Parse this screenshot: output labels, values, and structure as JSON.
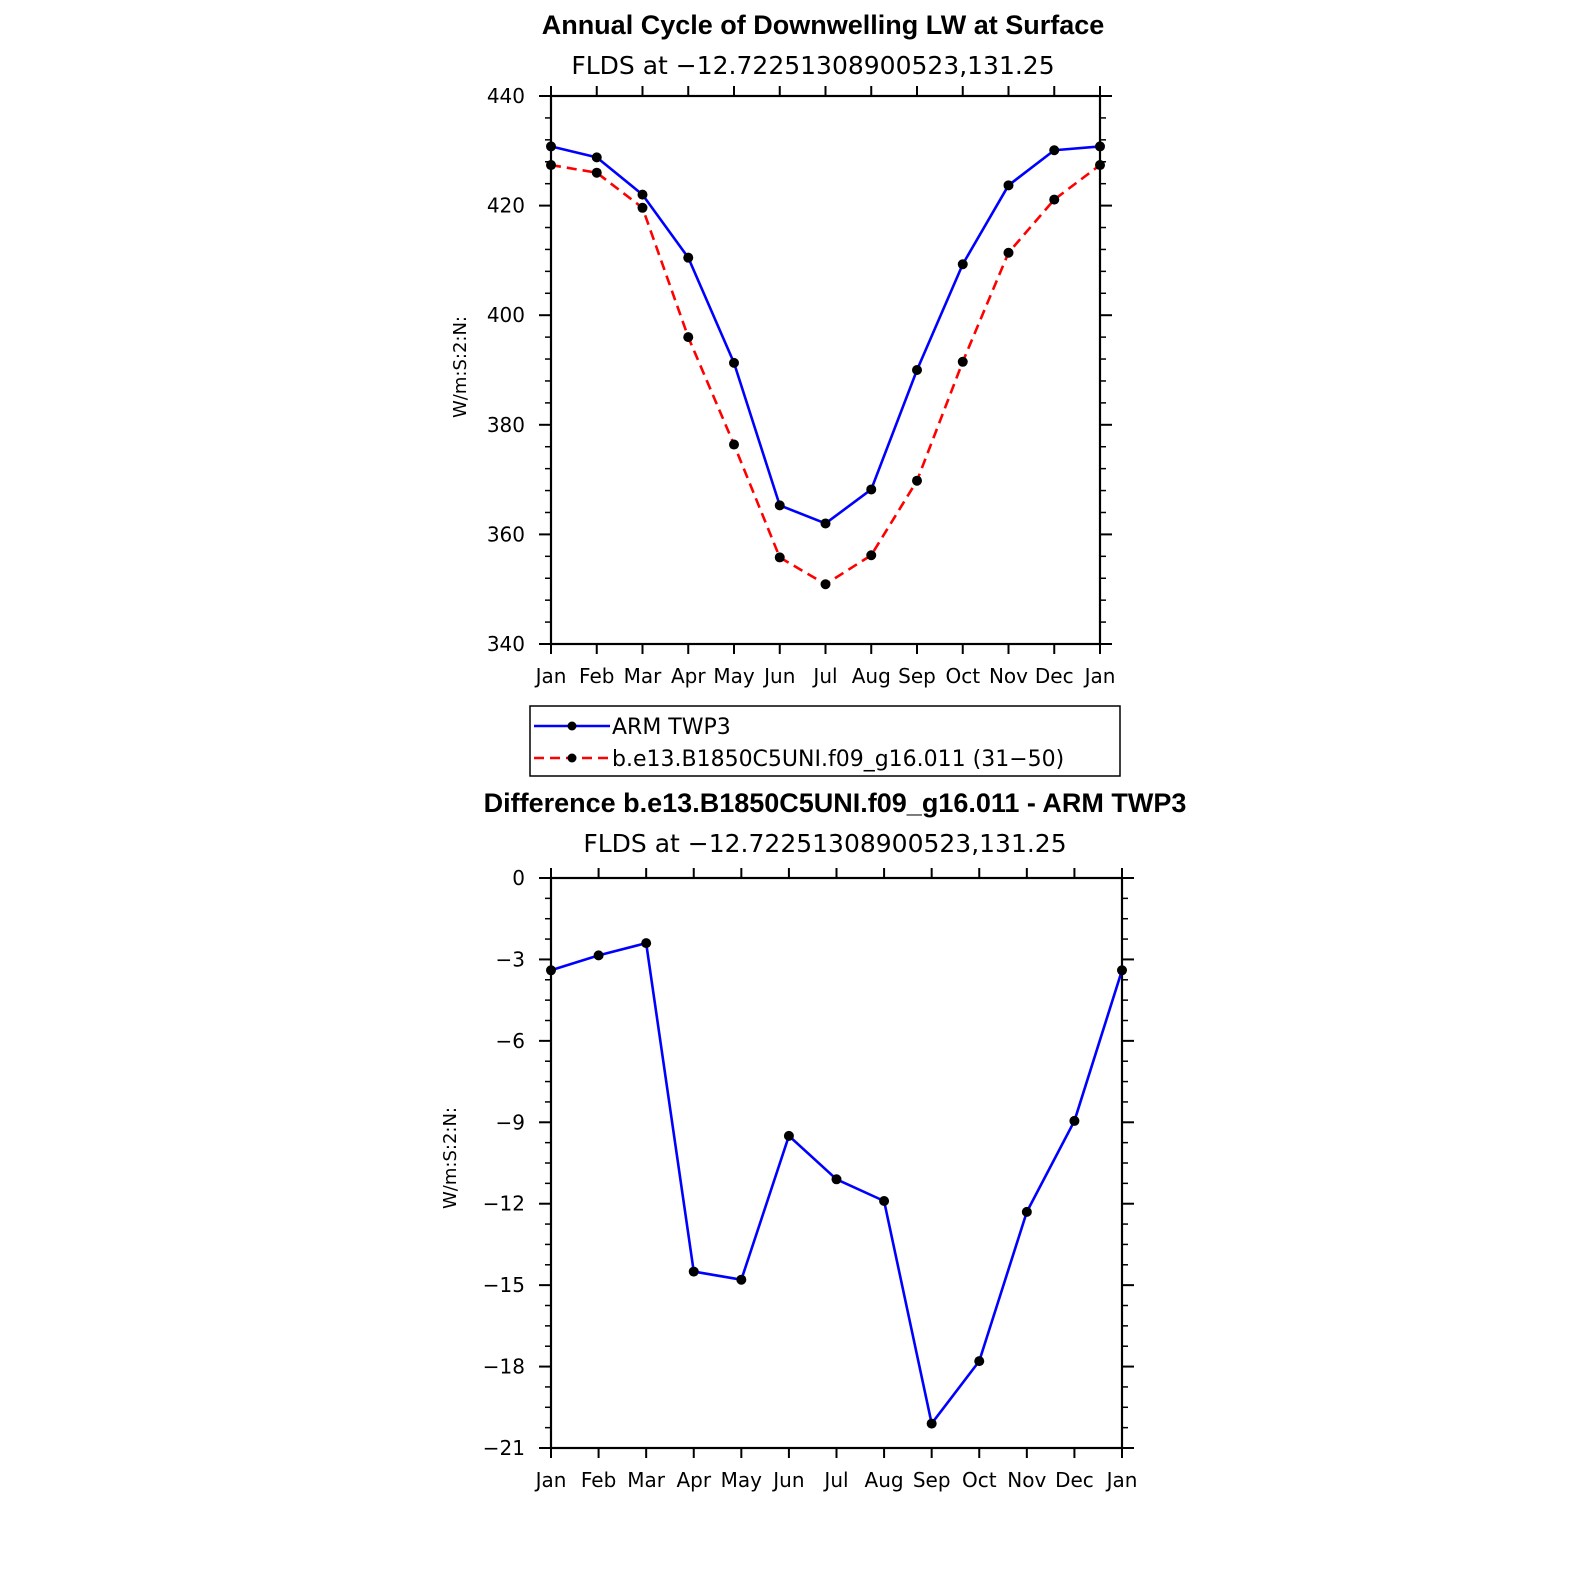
{
  "chart_data": [
    {
      "type": "line",
      "title": "Annual Cycle of Downwelling LW at Surface",
      "subtitle": "FLDS at −12.72251308900523,131.25",
      "xlabel": "",
      "ylabel": "W/m:S:2:N:",
      "categories": [
        "Jan",
        "Feb",
        "Mar",
        "Apr",
        "May",
        "Jun",
        "Jul",
        "Aug",
        "Sep",
        "Oct",
        "Nov",
        "Dec",
        "Jan"
      ],
      "ylim": [
        340,
        440
      ],
      "yticks": [
        "340",
        "360",
        "380",
        "400",
        "420",
        "440"
      ],
      "series": [
        {
          "name": "ARM TWP3",
          "color": "#0000ff",
          "dash": "solid",
          "values": [
            430.8,
            428.8,
            422.0,
            410.5,
            391.3,
            365.3,
            362.0,
            368.2,
            390.0,
            409.3,
            423.7,
            430.1,
            430.8
          ]
        },
        {
          "name": "b.e13.B1850C5UNI.f09_g16.011 (31−50)",
          "color": "#ff0000",
          "dash": "dashed",
          "values": [
            427.4,
            426.0,
            419.6,
            396.0,
            376.4,
            355.8,
            350.9,
            356.2,
            369.8,
            391.5,
            411.4,
            421.1,
            427.4
          ]
        }
      ],
      "legend": "below"
    },
    {
      "type": "line",
      "title": "Difference b.e13.B1850C5UNI.f09_g16.011 - ARM TWP3",
      "subtitle": "FLDS at −12.72251308900523,131.25",
      "xlabel": "",
      "ylabel": "W/m:S:2:N:",
      "categories": [
        "Jan",
        "Feb",
        "Mar",
        "Apr",
        "May",
        "Jun",
        "Jul",
        "Aug",
        "Sep",
        "Oct",
        "Nov",
        "Dec",
        "Jan"
      ],
      "ylim": [
        -21,
        0
      ],
      "yticks": [
        "−21",
        "−18",
        "−15",
        "−12",
        "−9",
        "−6",
        "−3",
        "0"
      ],
      "series": [
        {
          "name": "Difference",
          "color": "#0000ff",
          "dash": "solid",
          "values": [
            -3.4,
            -2.85,
            -2.4,
            -14.5,
            -14.8,
            -9.5,
            -11.1,
            -11.9,
            -20.1,
            -17.8,
            -12.3,
            -8.95,
            -3.4
          ]
        }
      ]
    }
  ]
}
